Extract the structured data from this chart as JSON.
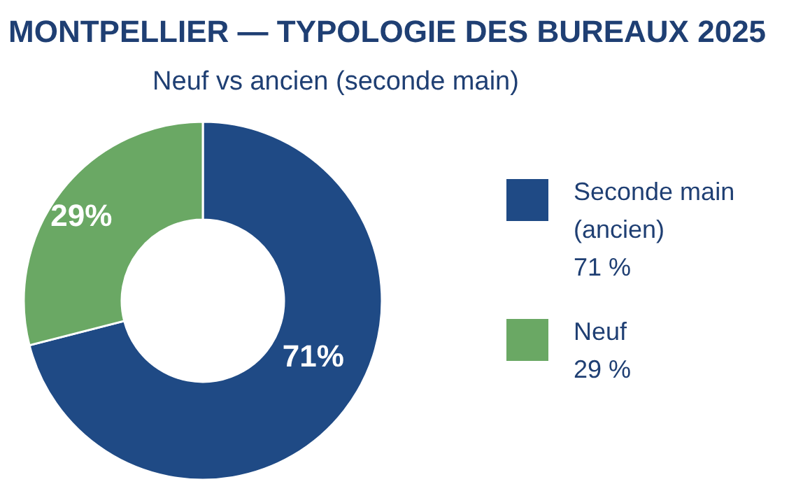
{
  "chart_data": {
    "type": "donut",
    "title": "MONTPELLIER — TYPOLOGIE DES BUREAUX 2025",
    "subtitle": "Neuf vs ancien (seconde main)",
    "categories": [
      "Seconde main (ancien)",
      "Neuf"
    ],
    "values": [
      71,
      29
    ],
    "colors": [
      "#1f4a85",
      "#6aa864"
    ],
    "value_labels": [
      "71%",
      "29%"
    ],
    "annotations": [
      "71 %",
      "29 %"
    ],
    "legend": "right"
  }
}
